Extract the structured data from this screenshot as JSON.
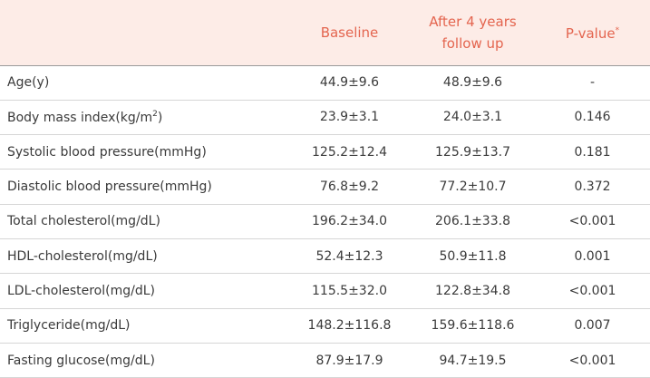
{
  "header": {
    "baseline": "Baseline",
    "followup": "After 4 years follow up",
    "pvalue": "P-value",
    "pvalue_mark": "*"
  },
  "table": {
    "rows": [
      {
        "label": "Age(y)",
        "baseline": "44.9±9.6",
        "followup": "48.9±9.6",
        "p": "-"
      },
      {
        "label": "Body mass index(kg/m",
        "label_sup": "2",
        "label_end": ")",
        "baseline": "23.9±3.1",
        "followup": "24.0±3.1",
        "p": "0.146"
      },
      {
        "label": "Systolic blood pressure(mmHg)",
        "baseline": "125.2±12.4",
        "followup": "125.9±13.7",
        "p": "0.181"
      },
      {
        "label": "Diastolic blood pressure(mmHg)",
        "baseline": "76.8±9.2",
        "followup": "77.2±10.7",
        "p": "0.372"
      },
      {
        "label": "Total cholesterol(mg/dL)",
        "baseline": "196.2±34.0",
        "followup": "206.1±33.8",
        "p": "<0.001"
      },
      {
        "label": "HDL-cholesterol(mg/dL)",
        "baseline": "52.4±12.3",
        "followup": "50.9±11.8",
        "p": "0.001"
      },
      {
        "label": "LDL-cholesterol(mg/dL)",
        "baseline": "115.5±32.0",
        "followup": "122.8±34.8",
        "p": "<0.001"
      },
      {
        "label": "Triglyceride(mg/dL)",
        "baseline": "148.2±116.8",
        "followup": "159.6±118.6",
        "p": "0.007"
      },
      {
        "label": "Fasting glucose(mg/dL)",
        "baseline": "87.9±17.9",
        "followup": "94.7±19.5",
        "p": "<0.001"
      }
    ]
  }
}
